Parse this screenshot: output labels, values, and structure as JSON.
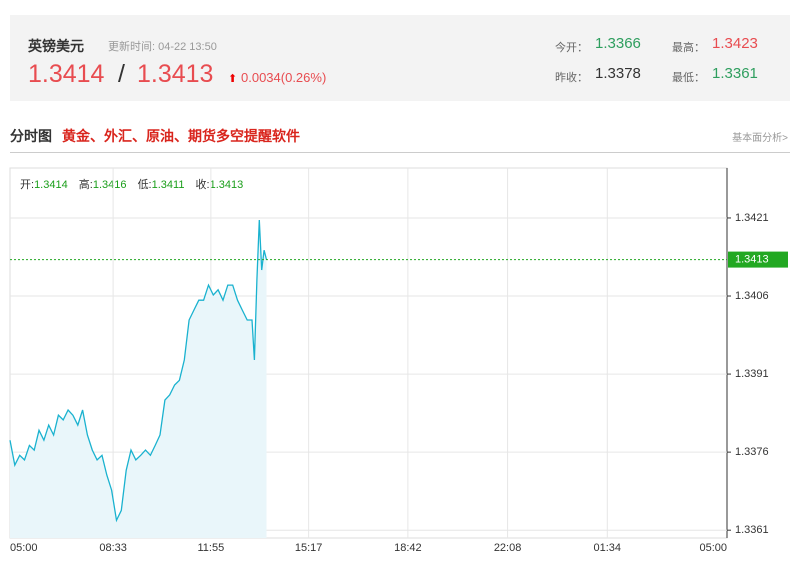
{
  "header": {
    "title": "英镑美元",
    "update_time": "更新时间: 04-22 13:50",
    "bid": "1.3414",
    "separator": "/",
    "ask": "1.3413",
    "change": "0.0034(0.26%)",
    "stats": [
      {
        "label": "今开：",
        "value": "1.3366"
      },
      {
        "label": "最高：",
        "value": "1.3423"
      },
      {
        "label": "昨收：",
        "value": "1.3378"
      },
      {
        "label": "最低：",
        "value": "1.3361"
      }
    ]
  },
  "section": {
    "title": "分时图",
    "promo": "黄金、外汇、原油、期货多空提醒软件",
    "link": "基本面分析>"
  },
  "quote": [
    {
      "label": "开:",
      "value": "1.3414"
    },
    {
      "label": "高:",
      "value": "1.3416"
    },
    {
      "label": "低:",
      "value": "1.3411"
    },
    {
      "label": "收:",
      "value": "1.3413"
    }
  ],
  "chart_data": {
    "type": "line",
    "color": "#1ab2cf",
    "area_color": "#e9f6fa",
    "x": [
      "05:00",
      "05:10",
      "05:20",
      "05:30",
      "05:40",
      "05:50",
      "06:00",
      "06:10",
      "06:20",
      "06:30",
      "06:40",
      "06:50",
      "07:00",
      "07:10",
      "07:20",
      "07:30",
      "07:40",
      "07:50",
      "08:00",
      "08:10",
      "08:20",
      "08:30",
      "08:40",
      "08:50",
      "09:00",
      "09:10",
      "09:20",
      "09:30",
      "09:40",
      "09:50",
      "10:00",
      "10:10",
      "10:20",
      "10:30",
      "10:40",
      "10:50",
      "11:00",
      "11:10",
      "11:20",
      "11:30",
      "11:40",
      "11:50",
      "12:00",
      "12:10",
      "12:20",
      "12:30",
      "12:40",
      "12:50",
      "13:00",
      "13:10",
      "13:20",
      "13:25",
      "13:30",
      "13:35",
      "13:40",
      "13:45",
      "13:50"
    ],
    "values": [
      1.33783,
      1.33735,
      1.33754,
      1.33745,
      1.33773,
      1.33764,
      1.33802,
      1.33783,
      1.33812,
      1.33793,
      1.33831,
      1.33822,
      1.33841,
      1.33831,
      1.33812,
      1.33841,
      1.33793,
      1.33764,
      1.33745,
      1.33754,
      1.33716,
      1.33687,
      1.33629,
      1.33648,
      1.33725,
      1.33764,
      1.33745,
      1.33754,
      1.33764,
      1.33754,
      1.33773,
      1.33793,
      1.3386,
      1.3387,
      1.33889,
      1.33898,
      1.33937,
      1.34014,
      1.34033,
      1.34052,
      1.34052,
      1.34081,
      1.34062,
      1.34072,
      1.34052,
      1.34081,
      1.34081,
      1.34052,
      1.34033,
      1.34014,
      1.34014,
      1.33937,
      1.34091,
      1.34206,
      1.3411,
      1.34148,
      1.3413
    ],
    "xticks": [
      "05:00",
      "08:33",
      "11:55",
      "15:17",
      "18:42",
      "22:08",
      "01:34",
      "05:00"
    ],
    "ylim": [
      1.33595,
      1.34306
    ],
    "yticks": [
      1.3361,
      1.3376,
      1.3391,
      1.3406,
      1.3421
    ],
    "grid": true,
    "current": 1.3413,
    "current_color": "#22a822"
  }
}
